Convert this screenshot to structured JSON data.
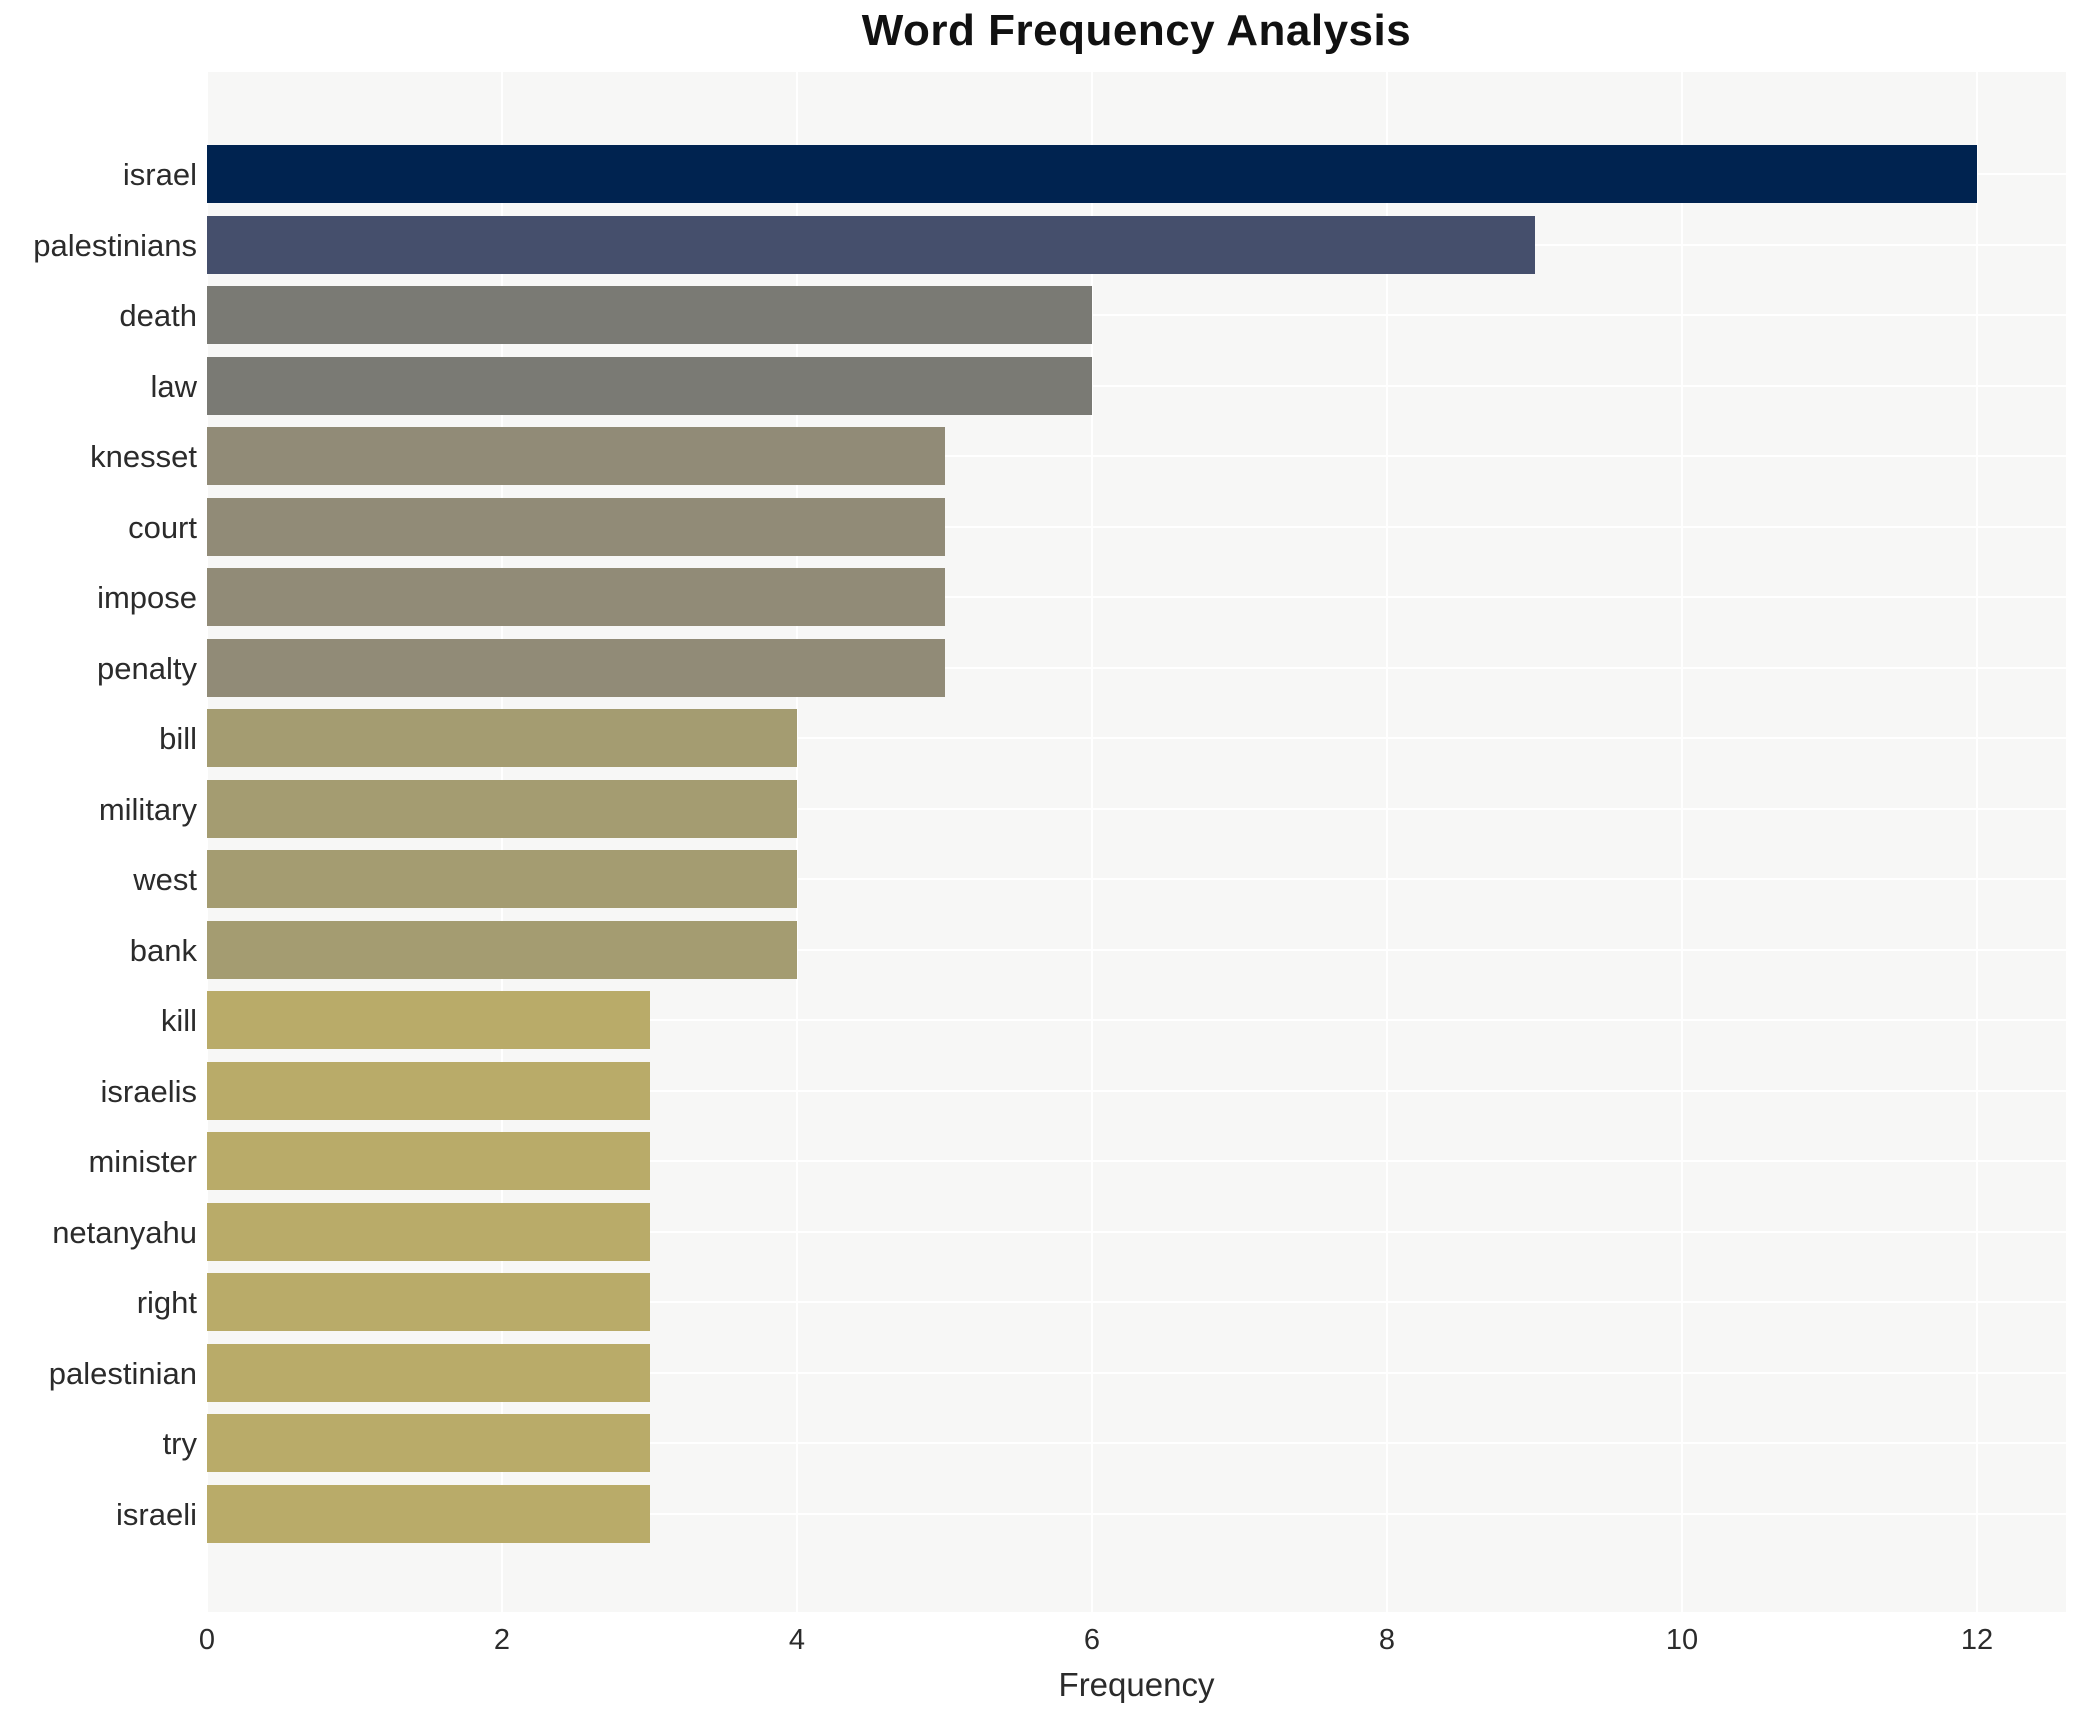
{
  "title": "Word Frequency Analysis",
  "chart_data": {
    "type": "bar",
    "orientation": "horizontal",
    "title": "Word Frequency Analysis",
    "xlabel": "Frequency",
    "ylabel": "",
    "categories": [
      "israel",
      "palestinians",
      "death",
      "law",
      "knesset",
      "court",
      "impose",
      "penalty",
      "bill",
      "military",
      "west",
      "bank",
      "kill",
      "israelis",
      "minister",
      "netanyahu",
      "right",
      "palestinian",
      "try",
      "israeli"
    ],
    "values": [
      12,
      9,
      6,
      6,
      5,
      5,
      5,
      5,
      4,
      4,
      4,
      4,
      3,
      3,
      3,
      3,
      3,
      3,
      3,
      3
    ],
    "bar_colors": [
      "#002350",
      "#454f6c",
      "#7a7a74",
      "#7a7a74",
      "#918b77",
      "#918b77",
      "#918b77",
      "#918b77",
      "#a49c71",
      "#a49c71",
      "#a49c71",
      "#a49c71",
      "#b9ab69",
      "#b9ab69",
      "#b9ab69",
      "#b9ab69",
      "#b9ab69",
      "#b9ab69",
      "#b9ab69",
      "#b9ab69"
    ],
    "xticks": [
      0,
      2,
      4,
      6,
      8,
      10,
      12
    ],
    "xlim": [
      0,
      12.6
    ],
    "grid": true,
    "legend": "none",
    "plot_background": "#f7f7f6",
    "grid_color": "#ffffff"
  }
}
